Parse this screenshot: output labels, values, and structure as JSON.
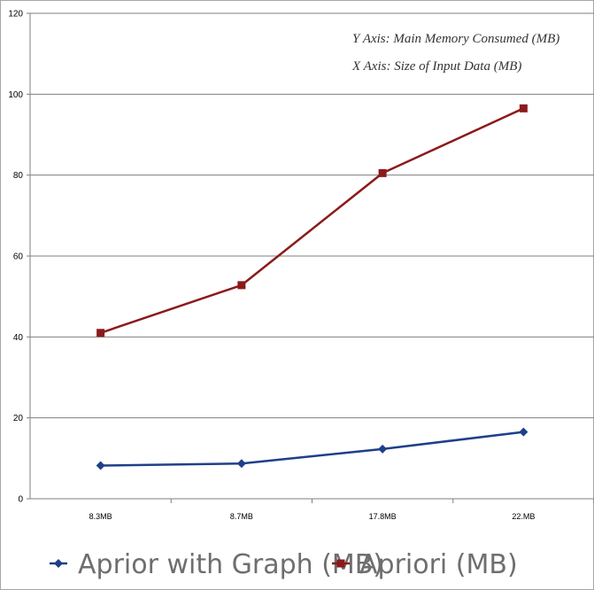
{
  "chart_data": {
    "type": "line",
    "categories": [
      "8.3MB",
      "8.7MB",
      "17.8MB",
      "22.MB"
    ],
    "series": [
      {
        "name": "Aprior with Graph (MB)",
        "values": [
          8.2,
          8.7,
          12.3,
          16.5
        ],
        "color": "#1f3f8a",
        "marker": "diamond"
      },
      {
        "name": "Apriori (MB)",
        "values": [
          41,
          52.8,
          80.5,
          96.5
        ],
        "color": "#8b1a1a",
        "marker": "square"
      }
    ],
    "ylim": [
      0,
      120
    ],
    "yticks": [
      0,
      20,
      40,
      60,
      80,
      100,
      120
    ],
    "annotations": [
      "Y Axis: Main Memory Consumed (MB)",
      "X Axis: Size of Input Data (MB)"
    ],
    "grid": "horizontal",
    "legend_position": "bottom"
  }
}
